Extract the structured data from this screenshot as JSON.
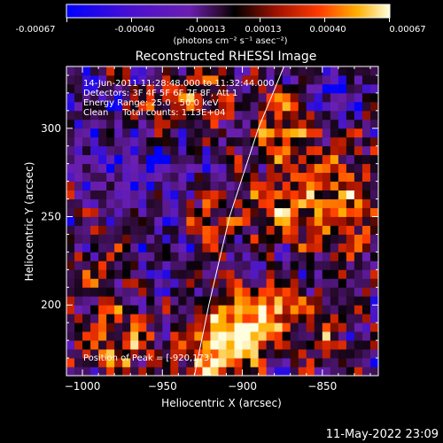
{
  "chart_data": {
    "type": "heatmap",
    "title": "Reconstructed RHESSI Image",
    "xlabel": "Heliocentric X (arcsec)",
    "ylabel": "Heliocentric Y (arcsec)",
    "xlim": [
      -1010,
      -815
    ],
    "ylim": [
      160,
      335
    ],
    "x_ticks": [
      -1000,
      -950,
      -900,
      -850
    ],
    "y_ticks": [
      200,
      250,
      300
    ],
    "grid": false,
    "colorbar": {
      "location": "top",
      "range": [
        -0.00067,
        0.00067
      ],
      "tick_values": [
        -0.00067,
        -0.0004,
        -0.00013,
        0.00013,
        0.0004,
        0.00067
      ],
      "tick_labels": [
        "-0.00067",
        "-0.00040",
        "-0.00013",
        "0.00013",
        "0.00040",
        "0.00067"
      ],
      "unit_label": "(photons cm⁻² s⁻¹ asec⁻²)",
      "colormap": [
        "#0000ff",
        "#6a1fb0",
        "#2a0a30",
        "#000000",
        "#a01200",
        "#ff3a00",
        "#ffb000",
        "#ffffe0"
      ]
    },
    "limb_curve": [
      [
        -930,
        160
      ],
      [
        -921,
        200
      ],
      [
        -908,
        250
      ],
      [
        -890,
        300
      ],
      [
        -874,
        335
      ]
    ],
    "peak": [
      -920,
      173
    ],
    "emission_regions": [
      {
        "x": -918,
        "y": 174,
        "value": 0.00066,
        "spread": 13
      },
      {
        "x": -895,
        "y": 180,
        "value": 0.0006,
        "spread": 10
      },
      {
        "x": -880,
        "y": 198,
        "value": 0.00062,
        "spread": 8
      },
      {
        "x": -905,
        "y": 200,
        "value": 0.0005,
        "spread": 10
      },
      {
        "x": -975,
        "y": 178,
        "value": 0.00045,
        "spread": 15
      },
      {
        "x": -855,
        "y": 185,
        "value": 0.00035,
        "spread": 12
      },
      {
        "x": -840,
        "y": 260,
        "value": 0.0004,
        "spread": 20
      },
      {
        "x": -880,
        "y": 255,
        "value": 0.00042,
        "spread": 12
      },
      {
        "x": -920,
        "y": 248,
        "value": 0.0004,
        "spread": 9
      },
      {
        "x": -875,
        "y": 300,
        "value": 0.00045,
        "spread": 13
      },
      {
        "x": -930,
        "y": 318,
        "value": 0.0004,
        "spread": 12
      },
      {
        "x": -955,
        "y": 306,
        "value": 0.00038,
        "spread": 10
      },
      {
        "x": -990,
        "y": 220,
        "value": 0.0002,
        "spread": 12
      },
      {
        "x": -960,
        "y": 280,
        "value": -0.0003,
        "spread": 18
      },
      {
        "x": -1000,
        "y": 300,
        "value": -0.0002,
        "spread": 16
      },
      {
        "x": -845,
        "y": 320,
        "value": -0.0003,
        "spread": 10
      },
      {
        "x": -950,
        "y": 225,
        "value": -0.00015,
        "spread": 15
      }
    ]
  },
  "colorbar_labels": {
    "t0": "-0.00067",
    "t1": "-0.00040",
    "t2": "-0.00013",
    "t3": "0.00013",
    "t4": "0.00040",
    "t5": "0.00067",
    "unit": "(photons cm⁻² s⁻¹ asec⁻²)"
  },
  "annotation": {
    "time_range": "14-Jun-2011 11:28:48.000 to 11:32:44.000",
    "detectors": "Detectors: 3F 4F 5F 6F 7F 8F, Att 1",
    "energy": "Energy Range: 25.0 - 50.0 keV",
    "method": "Clean     Total counts: 1.13E+04",
    "peak": "Position of Peak = [-920,173]"
  },
  "footer": {
    "timestamp": "11-May-2022 23:09"
  }
}
